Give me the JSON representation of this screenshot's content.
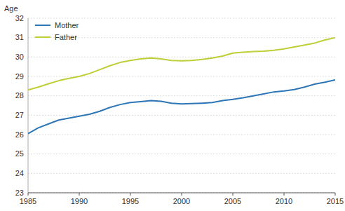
{
  "chart_data": {
    "type": "line",
    "y_label": "Age",
    "x": [
      1985,
      1986,
      1987,
      1988,
      1989,
      1990,
      1991,
      1992,
      1993,
      1994,
      1995,
      1996,
      1997,
      1998,
      1999,
      2000,
      2001,
      2002,
      2003,
      2004,
      2005,
      2006,
      2007,
      2008,
      2009,
      2010,
      2011,
      2012,
      2013,
      2014,
      2015
    ],
    "series": [
      {
        "name": "Mother",
        "color": "#2E75B6",
        "values": [
          26.05,
          26.35,
          26.55,
          26.75,
          26.85,
          26.95,
          27.05,
          27.2,
          27.4,
          27.55,
          27.65,
          27.7,
          27.75,
          27.72,
          27.62,
          27.58,
          27.6,
          27.62,
          27.65,
          27.75,
          27.82,
          27.9,
          28.0,
          28.1,
          28.2,
          28.25,
          28.32,
          28.45,
          28.6,
          28.7,
          28.82
        ]
      },
      {
        "name": "Father",
        "color": "#BFCE36",
        "values": [
          28.3,
          28.45,
          28.62,
          28.78,
          28.9,
          29.0,
          29.15,
          29.35,
          29.55,
          29.72,
          29.82,
          29.9,
          29.95,
          29.9,
          29.82,
          29.8,
          29.82,
          29.88,
          29.95,
          30.05,
          30.2,
          30.25,
          30.28,
          30.3,
          30.35,
          30.42,
          30.52,
          30.62,
          30.72,
          30.88,
          31.0
        ]
      }
    ],
    "xlim": [
      1985,
      2015
    ],
    "ylim": [
      23,
      32
    ],
    "xticks": [
      1985,
      1990,
      1995,
      2000,
      2005,
      2010,
      2015
    ],
    "yticks": [
      23,
      24,
      25,
      26,
      27,
      28,
      29,
      30,
      31,
      32
    ],
    "grid": true,
    "legend": "upper left"
  }
}
